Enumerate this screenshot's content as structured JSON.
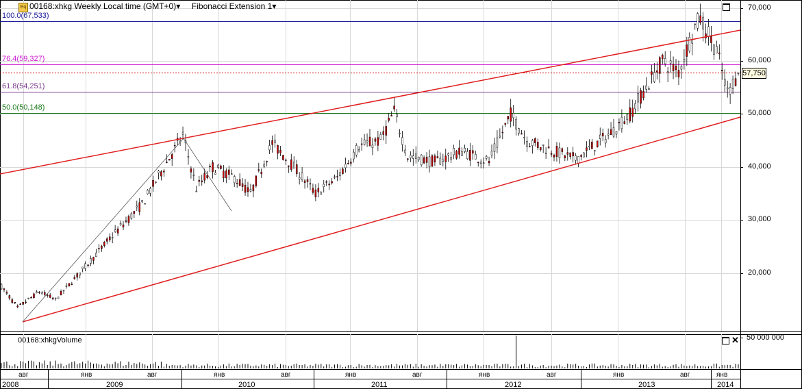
{
  "header": {
    "icon_text": "Eq",
    "symbol_title": "00168:xhkg Weekly Local time (GMT+0)",
    "indicator_title": "Fibonacci Extension 1",
    "dropdown_glyph": "▾"
  },
  "fibonacci_levels": [
    {
      "label": "100.0(67,533)",
      "value": 67533,
      "color": "#1a1a9a"
    },
    {
      "label": "76.4(59,327)",
      "value": 59327,
      "color": "#d01ad0"
    },
    {
      "label": "61.8(54,251)",
      "value": 54251,
      "color": "#7a3a8a"
    },
    {
      "label": "50.0(50,148)",
      "value": 50148,
      "color": "#1a7a1a"
    }
  ],
  "last_price": {
    "label": "57,750",
    "value": 57750
  },
  "volume_panel": {
    "title": "00168:xhkgVolume",
    "axis_label": "50 000 000",
    "axis_value": 50000000
  },
  "colors": {
    "trendline": "#e02020",
    "up_candle": "#ffffff",
    "down_candle": "#cc0000",
    "grid": "#d8d8d8"
  },
  "chart_data": {
    "type": "candlestick",
    "y_ticks": [
      {
        "label": "70,000",
        "value": 70000
      },
      {
        "label": "60,000",
        "value": 60000
      },
      {
        "label": "50,000",
        "value": 50000
      },
      {
        "label": "40,000",
        "value": 40000
      },
      {
        "label": "30,000",
        "value": 30000
      },
      {
        "label": "20,000",
        "value": 20000
      }
    ],
    "ylim": [
      9000,
      71500
    ],
    "month_ticks": [
      "авг",
      "янв",
      "авг",
      "янв",
      "авг",
      "янв",
      "авг",
      "янв",
      "авг",
      "янв",
      "авг",
      "янв",
      "авг",
      "янв"
    ],
    "year_labels": [
      "2008",
      "2009",
      "2010",
      "2011",
      "2012",
      "2013",
      "2014"
    ],
    "price_path_weekly_approx": [
      [
        0,
        17500
      ],
      [
        6,
        13500
      ],
      [
        14,
        16500
      ],
      [
        20,
        15000
      ],
      [
        28,
        19500
      ],
      [
        40,
        26500
      ],
      [
        52,
        33000
      ],
      [
        60,
        40000
      ],
      [
        67,
        46000
      ],
      [
        72,
        36000
      ],
      [
        78,
        40000
      ],
      [
        86,
        38000
      ],
      [
        92,
        35000
      ],
      [
        100,
        44500
      ],
      [
        108,
        40000
      ],
      [
        116,
        35000
      ],
      [
        124,
        38000
      ],
      [
        132,
        44000
      ],
      [
        140,
        45000
      ],
      [
        145,
        50500
      ],
      [
        150,
        42000
      ],
      [
        160,
        41000
      ],
      [
        170,
        43000
      ],
      [
        180,
        41000
      ],
      [
        188,
        50000
      ],
      [
        194,
        45000
      ],
      [
        204,
        43000
      ],
      [
        212,
        41500
      ],
      [
        224,
        46000
      ],
      [
        232,
        50000
      ],
      [
        238,
        55000
      ],
      [
        244,
        60000
      ],
      [
        250,
        58000
      ],
      [
        256,
        66500
      ],
      [
        258,
        68000
      ],
      [
        264,
        62000
      ],
      [
        268,
        54000
      ],
      [
        272,
        57750
      ]
    ],
    "volume_spike_week": 190,
    "volume_spike_value": 53000000
  }
}
